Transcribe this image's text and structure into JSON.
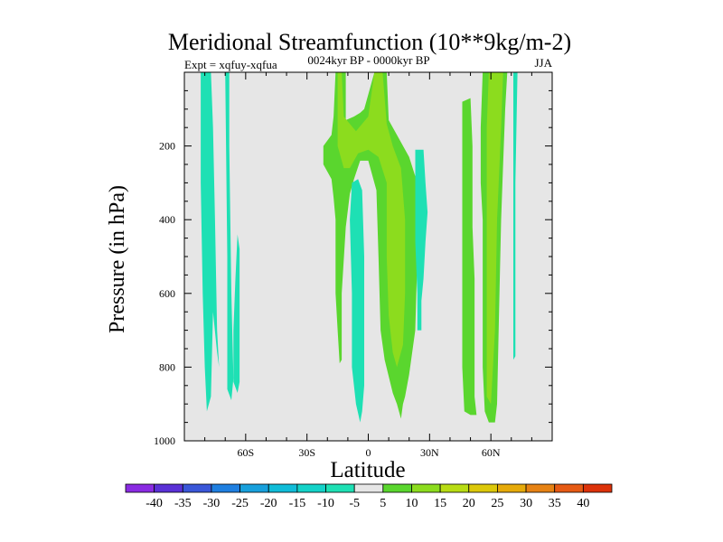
{
  "chart_data": {
    "type": "contour",
    "title": "Meridional Streamfunction (10**9kg/m-2)",
    "subtitle": "0024kyr BP - 0000kyr BP",
    "left_label": "Expt = xqfuy-xqfua",
    "right_label": "JJA",
    "xlabel": "Latitude",
    "ylabel": "Pressure (in hPa)",
    "x_range": [
      -90,
      90
    ],
    "y_range": [
      1000,
      0
    ],
    "x_ticks": [
      {
        "value": -60,
        "label": "60S"
      },
      {
        "value": -30,
        "label": "30S"
      },
      {
        "value": 0,
        "label": "0"
      },
      {
        "value": 30,
        "label": "30N"
      },
      {
        "value": 60,
        "label": "60N"
      }
    ],
    "y_ticks": [
      {
        "value": 200,
        "label": "200"
      },
      {
        "value": 400,
        "label": "400"
      },
      {
        "value": 600,
        "label": "600"
      },
      {
        "value": 800,
        "label": "800"
      },
      {
        "value": 1000,
        "label": "1000"
      }
    ],
    "background_color": "#e6e6e6",
    "colorbar": {
      "labels": [
        "-40",
        "-35",
        "-30",
        "-25",
        "-20",
        "-15",
        "-10",
        "-5",
        "5",
        "10",
        "15",
        "20",
        "25",
        "30",
        "35",
        "40"
      ],
      "colors": [
        "#8a2be2",
        "#5a31d6",
        "#3a57d8",
        "#1f7fe0",
        "#18a0dc",
        "#10bcd8",
        "#14d2c8",
        "#1ee0b4",
        "#e6e6e6",
        "#5ad62e",
        "#8cdc1e",
        "#b8dc14",
        "#dcc80a",
        "#e6aa0a",
        "#e68214",
        "#e65a14",
        "#dc320a"
      ]
    },
    "regions": [
      {
        "name": "sh-polar-neg",
        "level": "-5",
        "color": "#1ee0b4",
        "points": [
          [
            -82,
            0
          ],
          [
            -77,
            0
          ],
          [
            -76,
            150
          ],
          [
            -75,
            400
          ],
          [
            -74,
            700
          ],
          [
            -73,
            800
          ],
          [
            -74,
            760
          ],
          [
            -76,
            650
          ],
          [
            -77,
            880
          ],
          [
            -79,
            920
          ],
          [
            -80,
            800
          ],
          [
            -81,
            600
          ],
          [
            -82,
            300
          ]
        ]
      },
      {
        "name": "sh-60-neg",
        "level": "-5",
        "color": "#1ee0b4",
        "points": [
          [
            -70,
            0
          ],
          [
            -68,
            0
          ],
          [
            -68,
            200
          ],
          [
            -67,
            600
          ],
          [
            -66,
            830
          ],
          [
            -67,
            890
          ],
          [
            -69,
            860
          ],
          [
            -69,
            500
          ]
        ]
      },
      {
        "name": "sh-60-neg-b",
        "level": "-5",
        "color": "#1ee0b4",
        "points": [
          [
            -64,
            440
          ],
          [
            -63,
            480
          ],
          [
            -63,
            700
          ],
          [
            -63,
            840
          ],
          [
            -64,
            870
          ],
          [
            -66,
            840
          ],
          [
            -66,
            700
          ],
          [
            -65,
            560
          ]
        ]
      },
      {
        "name": "tropics-pos-outer",
        "level": "5",
        "color": "#5ad62e",
        "points": [
          [
            -16,
            0
          ],
          [
            -11,
            0
          ],
          [
            -11,
            130
          ],
          [
            -7,
            120
          ],
          [
            -4,
            110
          ],
          [
            -2,
            100
          ],
          [
            3,
            0
          ],
          [
            9,
            0
          ],
          [
            10,
            130
          ],
          [
            14,
            170
          ],
          [
            20,
            230
          ],
          [
            24,
            300
          ],
          [
            24,
            500
          ],
          [
            23,
            700
          ],
          [
            20,
            820
          ],
          [
            18,
            880
          ],
          [
            17,
            900
          ],
          [
            16,
            940
          ],
          [
            14,
            900
          ],
          [
            12,
            870
          ],
          [
            8,
            780
          ],
          [
            6,
            700
          ],
          [
            5,
            500
          ],
          [
            4,
            320
          ],
          [
            0,
            240
          ],
          [
            -4,
            240
          ],
          [
            -7,
            290
          ],
          [
            -9,
            330
          ],
          [
            -11,
            420
          ],
          [
            -13,
            600
          ],
          [
            -13,
            780
          ],
          [
            -14,
            790
          ],
          [
            -15,
            700
          ],
          [
            -16,
            600
          ],
          [
            -16,
            400
          ],
          [
            -17,
            340
          ],
          [
            -18,
            290
          ],
          [
            -22,
            250
          ],
          [
            -22,
            200
          ],
          [
            -18,
            170
          ],
          [
            -17,
            120
          ]
        ]
      },
      {
        "name": "tropics-pos-inner",
        "level": "10",
        "color": "#8cdc1e",
        "points": [
          [
            -15,
            0
          ],
          [
            -13,
            0
          ],
          [
            -12,
            120
          ],
          [
            -9,
            140
          ],
          [
            -6,
            160
          ],
          [
            -3,
            140
          ],
          [
            0,
            120
          ],
          [
            3,
            0
          ],
          [
            7,
            0
          ],
          [
            9,
            140
          ],
          [
            12,
            200
          ],
          [
            16,
            260
          ],
          [
            18,
            400
          ],
          [
            18,
            600
          ],
          [
            17,
            740
          ],
          [
            14,
            800
          ],
          [
            12,
            760
          ],
          [
            10,
            660
          ],
          [
            9,
            500
          ],
          [
            9,
            300
          ],
          [
            5,
            230
          ],
          [
            0,
            210
          ],
          [
            -5,
            220
          ],
          [
            -9,
            260
          ],
          [
            -12,
            260
          ],
          [
            -15,
            200
          ]
        ]
      },
      {
        "name": "sh-sub-neg",
        "level": "-5",
        "color": "#1ee0b4",
        "points": [
          [
            -8,
            300
          ],
          [
            -5,
            290
          ],
          [
            -3,
            320
          ],
          [
            -2,
            500
          ],
          [
            -2,
            700
          ],
          [
            -2,
            850
          ],
          [
            -3,
            920
          ],
          [
            -4,
            950
          ],
          [
            -6,
            900
          ],
          [
            -8,
            800
          ],
          [
            -8,
            600
          ],
          [
            -9,
            400
          ]
        ]
      },
      {
        "name": "nh-sub-neg",
        "level": "-5",
        "color": "#1ee0b4",
        "points": [
          [
            23,
            210
          ],
          [
            27,
            210
          ],
          [
            28,
            300
          ],
          [
            29,
            380
          ],
          [
            28,
            460
          ],
          [
            27,
            560
          ],
          [
            26,
            620
          ],
          [
            26,
            700
          ],
          [
            24,
            700
          ],
          [
            24,
            600
          ],
          [
            23,
            460
          ],
          [
            23,
            300
          ]
        ]
      },
      {
        "name": "nh-mid-pos-outer",
        "level": "5",
        "color": "#5ad62e",
        "points": [
          [
            46,
            80
          ],
          [
            50,
            70
          ],
          [
            51,
            200
          ],
          [
            51,
            420
          ],
          [
            52,
            560
          ],
          [
            52,
            700
          ],
          [
            52,
            880
          ],
          [
            53,
            930
          ],
          [
            50,
            930
          ],
          [
            47,
            920
          ],
          [
            46,
            800
          ],
          [
            46,
            500
          ],
          [
            46,
            300
          ]
        ]
      },
      {
        "name": "nh-polar-pos-outer",
        "level": "5",
        "color": "#5ad62e",
        "points": [
          [
            56,
            0
          ],
          [
            68,
            0
          ],
          [
            67,
            100
          ],
          [
            66,
            250
          ],
          [
            65,
            400
          ],
          [
            64,
            650
          ],
          [
            63,
            900
          ],
          [
            62,
            950
          ],
          [
            59,
            950
          ],
          [
            57,
            920
          ],
          [
            56,
            800
          ],
          [
            56,
            600
          ],
          [
            56,
            400
          ],
          [
            55,
            300
          ],
          [
            55,
            150
          ]
        ]
      },
      {
        "name": "nh-polar-pos-inner",
        "level": "10",
        "color": "#8cdc1e",
        "points": [
          [
            59,
            0
          ],
          [
            66,
            0
          ],
          [
            65,
            150
          ],
          [
            63,
            400
          ],
          [
            62,
            700
          ],
          [
            60,
            900
          ],
          [
            58,
            880
          ],
          [
            58,
            700
          ],
          [
            58,
            400
          ],
          [
            58,
            150
          ]
        ]
      },
      {
        "name": "nh-polar-neg",
        "level": "-5",
        "color": "#1ee0b4",
        "points": [
          [
            71,
            0
          ],
          [
            73,
            0
          ],
          [
            72,
            300
          ],
          [
            72,
            600
          ],
          [
            72,
            770
          ],
          [
            71,
            780
          ],
          [
            71,
            500
          ],
          [
            71,
            200
          ]
        ]
      }
    ]
  }
}
